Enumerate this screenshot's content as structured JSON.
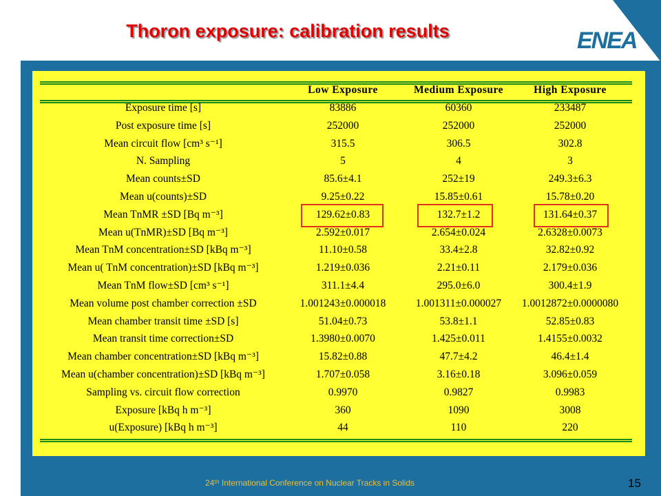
{
  "header": {
    "title": "Thoron exposure: calibration results",
    "logo": "ENEA"
  },
  "table": {
    "columns": [
      "Low Exposure",
      "Medium Exposure",
      "High Exposure"
    ],
    "rows": [
      [
        "Exposure time [s]",
        "83886",
        "60360",
        "233487"
      ],
      [
        "Post exposure time [s]",
        "252000",
        "252000",
        "252000"
      ],
      [
        "Mean circuit flow [cm³ s⁻¹]",
        "315.5",
        "306.5",
        "302.8"
      ],
      [
        "N. Sampling",
        "5",
        "4",
        "3"
      ],
      [
        "Mean counts±SD",
        "85.6±4.1",
        "252±19",
        "249.3±6.3"
      ],
      [
        "Mean u(counts)±SD",
        "9.25±0.22",
        "15.85±0.61",
        "15.78±0.20"
      ],
      [
        "Mean TnMR ±SD [Bq m⁻³]",
        "129.62±0.83",
        "132.7±1.2",
        "131.64±0.37"
      ],
      [
        "Mean u(TnMR)±SD [Bq m⁻³]",
        "2.592±0.017",
        "2.654±0.024",
        "2.6328±0.0073"
      ],
      [
        "Mean TnM concentration±SD [kBq m⁻³]",
        "11.10±0.58",
        "33.4±2.8",
        "32.82±0.92"
      ],
      [
        "Mean u( TnM concentration)±SD [kBq m⁻³]",
        "1.219±0.036",
        "2.21±0.11",
        "2.179±0.036"
      ],
      [
        "Mean TnM flow±SD [cm³ s⁻¹]",
        "311.1±4.4",
        "295.0±6.0",
        "300.4±1.9"
      ],
      [
        "Mean volume post chamber correction ±SD",
        "1.001243±0.000018",
        "1.001311±0.000027",
        "1.0012872±0.0000080"
      ],
      [
        "Mean chamber transit time ±SD [s]",
        "51.04±0.73",
        "53.8±1.1",
        "52.85±0.83"
      ],
      [
        "Mean transit time correction±SD",
        "1.3980±0.0070",
        "1.425±0.011",
        "1.4155±0.0032"
      ],
      [
        "Mean chamber concentration±SD [kBq m⁻³]",
        "15.82±0.88",
        "47.7±4.2",
        "46.4±1.4"
      ],
      [
        "Mean u(chamber concentration)±SD [kBq m⁻³]",
        "1.707±0.058",
        "3.16±0.18",
        "3.096±0.059"
      ],
      [
        "Sampling vs. circuit flow correction",
        "0.9970",
        "0.9827",
        "0.9983"
      ],
      [
        "Exposure [kBq h m⁻³]",
        "360",
        "1090",
        "3008"
      ],
      [
        "u(Exposure) [kBq h m⁻³]",
        "44",
        "110",
        "220"
      ]
    ]
  },
  "footer": {
    "conference": "24ᵗʰ International Conference on Nuclear Tracks in Solids",
    "page": "15"
  }
}
